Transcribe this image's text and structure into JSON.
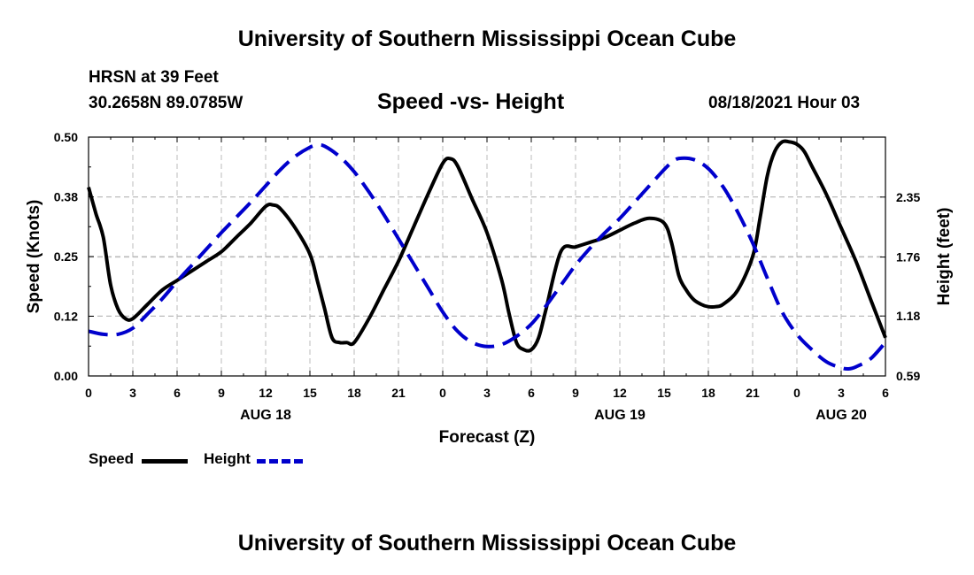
{
  "header": {
    "title": "University of Southern Mississippi Ocean Cube",
    "station": "HRSN at 39 Feet",
    "coords": "30.2658N  89.0785W",
    "datetime": "08/18/2021 Hour 03"
  },
  "footer": {
    "title": "University of Southern Mississippi Ocean Cube"
  },
  "legend": {
    "speed_label": "Speed",
    "height_label": "Height"
  },
  "colors": {
    "speed": "#000000",
    "height": "#0000cc",
    "grid": "#bbbbbb"
  },
  "chart_data": {
    "type": "line",
    "title": "Speed -vs- Height",
    "xlabel": "Forecast (Z)",
    "ylabel": "Speed (Knots)",
    "y2label": "Height (feet)",
    "xlim": [
      0,
      54
    ],
    "ylim": [
      0,
      0.5
    ],
    "y2lim": [
      0.59,
      2.94
    ],
    "x_ticks": [
      0,
      3,
      6,
      9,
      12,
      15,
      18,
      21,
      24,
      27,
      30,
      33,
      36,
      39,
      42,
      45,
      48,
      51,
      54
    ],
    "x_tick_labels": [
      "0",
      "3",
      "6",
      "9",
      "12",
      "15",
      "18",
      "21",
      "0",
      "3",
      "6",
      "9",
      "12",
      "15",
      "18",
      "21",
      "0",
      "3",
      "6"
    ],
    "date_labels": [
      {
        "x": 12,
        "label": "AUG 18"
      },
      {
        "x": 36,
        "label": "AUG 19"
      },
      {
        "x": 51,
        "label": "AUG 20"
      }
    ],
    "y_ticks": [
      0.0,
      0.125,
      0.25,
      0.375,
      0.5
    ],
    "y_tick_labels": [
      "0.00",
      "0.12",
      "0.25",
      "0.38",
      "0.50"
    ],
    "y2_ticks": [
      0.59,
      1.18,
      1.76,
      2.35
    ],
    "y2_tick_labels": [
      "0.59",
      "1.18",
      "1.76",
      "2.35"
    ],
    "series": [
      {
        "name": "Speed",
        "axis": "left",
        "style": "solid",
        "x": [
          0,
          0.5,
          1,
          1.5,
          2,
          2.5,
          3,
          4,
          5,
          6,
          7,
          8,
          9,
          10,
          11,
          12,
          12.5,
          13,
          14,
          15,
          15.5,
          16,
          16.5,
          17,
          17.5,
          18,
          19,
          20,
          21,
          22,
          23,
          24,
          24.5,
          25,
          26,
          27,
          28,
          28.5,
          29,
          29.5,
          30,
          30.5,
          31,
          32,
          33,
          34,
          35,
          36,
          37,
          38,
          39,
          39.5,
          40,
          40.5,
          41,
          41.5,
          42,
          42.5,
          43,
          44,
          45,
          45.5,
          46,
          46.5,
          47,
          47.5,
          48,
          48.5,
          49,
          50,
          51,
          52,
          53,
          54
        ],
        "y": [
          0.395,
          0.34,
          0.29,
          0.19,
          0.14,
          0.12,
          0.12,
          0.15,
          0.18,
          0.2,
          0.22,
          0.24,
          0.26,
          0.29,
          0.32,
          0.355,
          0.358,
          0.35,
          0.31,
          0.255,
          0.2,
          0.14,
          0.08,
          0.07,
          0.07,
          0.07,
          0.12,
          0.18,
          0.24,
          0.31,
          0.38,
          0.445,
          0.455,
          0.44,
          0.37,
          0.3,
          0.2,
          0.13,
          0.07,
          0.055,
          0.055,
          0.08,
          0.14,
          0.26,
          0.27,
          0.28,
          0.29,
          0.305,
          0.32,
          0.33,
          0.32,
          0.28,
          0.21,
          0.18,
          0.16,
          0.15,
          0.145,
          0.145,
          0.15,
          0.18,
          0.25,
          0.33,
          0.42,
          0.47,
          0.49,
          0.49,
          0.485,
          0.47,
          0.44,
          0.38,
          0.31,
          0.24,
          0.16,
          0.08
        ]
      },
      {
        "name": "Height",
        "axis": "right",
        "style": "dashed",
        "x": [
          0,
          1,
          2,
          3,
          4,
          5,
          6,
          7,
          8,
          9,
          10,
          11,
          12,
          13,
          14,
          15,
          15.5,
          16,
          17,
          18,
          19,
          20,
          21,
          22,
          23,
          24,
          25,
          26,
          27,
          28,
          29,
          30,
          31,
          32,
          33,
          34,
          35,
          36,
          37,
          38,
          39,
          39.5,
          40,
          41,
          42,
          43,
          44,
          45,
          46,
          47,
          48,
          49,
          50,
          51,
          51.5,
          52,
          53,
          54
        ],
        "y": [
          1.03,
          1.0,
          1.0,
          1.06,
          1.2,
          1.35,
          1.52,
          1.68,
          1.84,
          2.0,
          2.15,
          2.3,
          2.46,
          2.62,
          2.75,
          2.84,
          2.86,
          2.85,
          2.75,
          2.6,
          2.4,
          2.18,
          1.94,
          1.7,
          1.46,
          1.22,
          1.03,
          0.92,
          0.88,
          0.9,
          0.98,
          1.1,
          1.28,
          1.48,
          1.68,
          1.85,
          2.0,
          2.14,
          2.3,
          2.46,
          2.62,
          2.69,
          2.73,
          2.72,
          2.63,
          2.45,
          2.2,
          1.9,
          1.55,
          1.22,
          1.0,
          0.85,
          0.73,
          0.67,
          0.66,
          0.68,
          0.76,
          0.92
        ]
      }
    ]
  }
}
